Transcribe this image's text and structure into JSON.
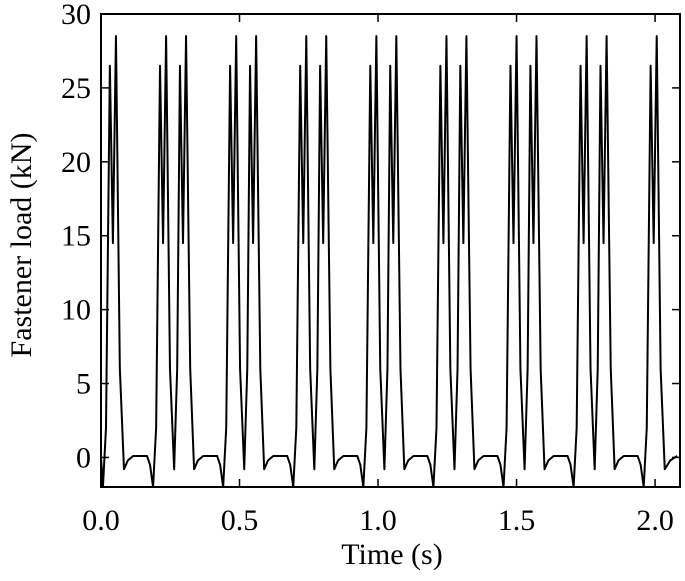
{
  "chart_data": {
    "type": "line",
    "xlabel": "Time (s)",
    "ylabel": "Fastener load (kN)",
    "color": "#000000",
    "xlim": [
      0,
      2.09
    ],
    "ylim": [
      -2,
      30
    ],
    "xticks": [
      {
        "value": 0,
        "label": "0.0"
      },
      {
        "value": 0.5,
        "label": "0.5"
      },
      {
        "value": 1,
        "label": "1.0"
      },
      {
        "value": 1.5,
        "label": "1.5"
      },
      {
        "value": 2,
        "label": "2.0"
      }
    ],
    "yticks": [
      0,
      5,
      10,
      15,
      20,
      25,
      30
    ],
    "x": [
      0,
      0.007,
      0.018,
      0.032,
      0.043,
      0.054,
      0.068,
      0.083,
      0.097,
      0.116,
      0.166,
      0.177,
      0.188,
      0.199,
      0.213,
      0.224,
      0.235,
      0.249,
      0.264,
      0.275,
      0.285,
      0.296,
      0.307,
      0.322,
      0.336,
      0.35,
      0.369,
      0.419,
      0.43,
      0.441,
      0.452,
      0.466,
      0.477,
      0.488,
      0.502,
      0.517,
      0.528,
      0.538,
      0.549,
      0.56,
      0.575,
      0.589,
      0.603,
      0.622,
      0.672,
      0.683,
      0.694,
      0.705,
      0.719,
      0.73,
      0.741,
      0.755,
      0.77,
      0.781,
      0.791,
      0.802,
      0.813,
      0.828,
      0.842,
      0.856,
      0.875,
      0.925,
      0.936,
      0.947,
      0.958,
      0.972,
      0.983,
      0.994,
      1.008,
      1.023,
      1.034,
      1.044,
      1.055,
      1.066,
      1.081,
      1.095,
      1.109,
      1.128,
      1.178,
      1.189,
      1.2,
      1.211,
      1.225,
      1.236,
      1.247,
      1.261,
      1.276,
      1.287,
      1.297,
      1.308,
      1.319,
      1.334,
      1.348,
      1.362,
      1.381,
      1.431,
      1.442,
      1.453,
      1.464,
      1.478,
      1.489,
      1.5,
      1.514,
      1.529,
      1.54,
      1.55,
      1.561,
      1.572,
      1.587,
      1.601,
      1.615,
      1.634,
      1.684,
      1.695,
      1.706,
      1.717,
      1.731,
      1.742,
      1.753,
      1.767,
      1.782,
      1.793,
      1.803,
      1.814,
      1.825,
      1.84,
      1.854,
      1.868,
      1.887,
      1.937,
      1.948,
      1.959,
      1.97,
      1.984,
      1.995,
      2.006,
      2.02,
      2.035,
      2.055,
      2.08
    ],
    "values": [
      0,
      -2,
      2,
      26.5,
      14.5,
      28.5,
      6,
      -0.8,
      -0.2,
      0.1,
      0.1,
      -0.5,
      -2,
      2,
      26.5,
      14.5,
      28.5,
      6,
      -0.8,
      6,
      26.5,
      14.5,
      28.5,
      6,
      -0.8,
      -0.2,
      0.1,
      0.1,
      -0.5,
      -2,
      2,
      26.5,
      14.5,
      28.5,
      6,
      -0.8,
      6,
      26.5,
      14.5,
      28.5,
      6,
      -0.8,
      -0.2,
      0.1,
      0.1,
      -0.5,
      -2,
      2,
      26.5,
      14.5,
      28.5,
      6,
      -0.8,
      6,
      26.5,
      14.5,
      28.5,
      6,
      -0.8,
      -0.2,
      0.1,
      0.1,
      -0.5,
      -2,
      2,
      26.5,
      14.5,
      28.5,
      6,
      -0.8,
      6,
      26.5,
      14.5,
      28.5,
      6,
      -0.8,
      -0.2,
      0.1,
      0.1,
      -0.5,
      -2,
      2,
      26.5,
      14.5,
      28.5,
      6,
      -0.8,
      6,
      26.5,
      14.5,
      28.5,
      6,
      -0.8,
      -0.2,
      0.1,
      0.1,
      -0.5,
      -2,
      2,
      26.5,
      14.5,
      28.5,
      6,
      -0.8,
      6,
      26.5,
      14.5,
      28.5,
      6,
      -0.8,
      -0.2,
      0.1,
      0.1,
      -0.5,
      -2,
      2,
      26.5,
      14.5,
      28.5,
      6,
      -0.8,
      6,
      26.5,
      14.5,
      28.5,
      6,
      -0.8,
      -0.2,
      0.1,
      0.1,
      -0.5,
      -2,
      2,
      26.5,
      14.5,
      28.5,
      6,
      -0.8,
      -0.2,
      0.1
    ]
  }
}
